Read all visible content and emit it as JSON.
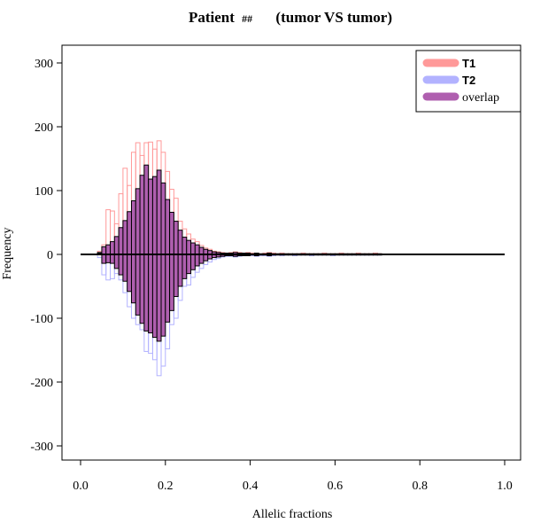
{
  "chart_data": {
    "type": "bar",
    "title_main": "Patient",
    "title_hash": "##",
    "title_sub": "(tumor VS tumor)",
    "xlabel": "Allelic fractions",
    "ylabel": "Frequency",
    "xlim": [
      0,
      1
    ],
    "ylim": [
      -320,
      320
    ],
    "x_ticks": [
      "0.0",
      "0.2",
      "0.4",
      "0.6",
      "0.8",
      "1.0"
    ],
    "y_ticks": [
      "-300",
      "-200",
      "-100",
      "0",
      "100",
      "200",
      "300"
    ],
    "bin_width": 0.01,
    "x": [
      0.04,
      0.05,
      0.06,
      0.07,
      0.08,
      0.09,
      0.1,
      0.11,
      0.12,
      0.13,
      0.14,
      0.15,
      0.16,
      0.17,
      0.18,
      0.19,
      0.2,
      0.21,
      0.22,
      0.23,
      0.24,
      0.25,
      0.26,
      0.27,
      0.28,
      0.29,
      0.3,
      0.31,
      0.32,
      0.33,
      0.34,
      0.35,
      0.36,
      0.37,
      0.38,
      0.39,
      0.4,
      0.41,
      0.42,
      0.43,
      0.44,
      0.45,
      0.46,
      0.47,
      0.48,
      0.49,
      0.5,
      0.51,
      0.52,
      0.53,
      0.54,
      0.55,
      0.56,
      0.57,
      0.58,
      0.59,
      0.6,
      0.61,
      0.62,
      0.63,
      0.64,
      0.65,
      0.66,
      0.67,
      0.68,
      0.69,
      0.7
    ],
    "series": [
      {
        "name": "T1",
        "color": "#FF9999",
        "direction": "up",
        "values": [
          5,
          15,
          70,
          68,
          48,
          95,
          135,
          108,
          160,
          175,
          155,
          175,
          176,
          165,
          178,
          160,
          130,
          102,
          88,
          52,
          40,
          32,
          24,
          20,
          14,
          10,
          8,
          5,
          4,
          3,
          2,
          3,
          4,
          3,
          2,
          3,
          2,
          2,
          1,
          2,
          3,
          2,
          1,
          2,
          1,
          1,
          1,
          1,
          2,
          1,
          1,
          1,
          1,
          2,
          1,
          1,
          1,
          2,
          1,
          1,
          1,
          2,
          1,
          1,
          1,
          2,
          1
        ]
      },
      {
        "name": "T2",
        "color": "#B2B2FF",
        "direction": "down",
        "values": [
          5,
          32,
          40,
          38,
          30,
          40,
          60,
          82,
          100,
          110,
          118,
          152,
          155,
          165,
          190,
          175,
          148,
          110,
          100,
          72,
          50,
          48,
          36,
          28,
          22,
          16,
          12,
          8,
          6,
          4,
          3,
          3,
          4,
          3,
          2,
          2,
          2,
          3,
          2,
          2,
          3,
          2,
          1,
          2,
          1,
          1,
          2,
          1,
          1,
          1,
          2,
          1,
          1,
          1,
          1,
          2,
          1,
          1,
          1,
          1,
          1,
          1,
          1,
          1,
          1,
          1,
          1
        ]
      }
    ],
    "overlap": {
      "name": "overlap",
      "color": "#AF5FAF",
      "up": [
        3,
        12,
        15,
        20,
        28,
        42,
        53,
        67,
        84,
        103,
        124,
        140,
        118,
        122,
        132,
        112,
        86,
        66,
        52,
        38,
        27,
        22,
        18,
        15,
        11,
        8,
        6,
        4,
        3,
        2,
        2,
        2,
        3,
        2,
        2,
        2,
        1,
        2,
        1,
        1,
        2,
        1,
        1,
        1,
        1,
        1,
        1,
        1,
        1,
        1,
        1,
        1,
        1,
        1,
        1,
        1,
        1,
        1,
        1,
        1,
        1,
        1,
        1,
        1,
        1,
        1,
        1
      ],
      "down": [
        2,
        -14,
        -13,
        -14,
        -22,
        -32,
        -42,
        -58,
        -76,
        -95,
        -108,
        -120,
        -123,
        -130,
        -136,
        -128,
        -106,
        -88,
        -66,
        -50,
        -38,
        -30,
        -24,
        -18,
        -14,
        -10,
        -7,
        -5,
        -4,
        -3,
        -2,
        -2,
        -3,
        -2,
        -2,
        -2,
        -1,
        -2,
        -1,
        -1,
        -2,
        -1,
        -1,
        -1,
        -1,
        -1,
        -1,
        -1,
        -1,
        -1,
        -1,
        -1,
        -1,
        -1,
        -1,
        -1,
        -1,
        -1,
        -1,
        -1,
        -1,
        -1,
        -1,
        -1,
        -1,
        -1,
        -1
      ]
    },
    "legend": {
      "position": "top-right",
      "entries": [
        "T1",
        "T2",
        "overlap"
      ]
    },
    "grid": false
  }
}
